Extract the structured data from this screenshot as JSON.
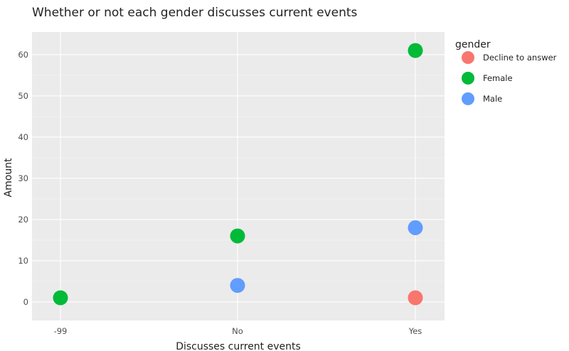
{
  "chart_data": {
    "type": "scatter",
    "title": "Whether or not each gender discusses current events",
    "xlabel": "Discusses current events",
    "ylabel": "Amount",
    "categories": [
      "-99",
      "No",
      "Yes"
    ],
    "ylim": [
      -4.5,
      65.5
    ],
    "yticks": [
      0,
      10,
      20,
      30,
      40,
      50,
      60
    ],
    "grid": true,
    "legend": {
      "title": "gender",
      "position": "right",
      "entries": [
        "Decline to answer",
        "Female",
        "Male"
      ]
    },
    "series": [
      {
        "name": "Decline to answer",
        "color": "#F8766D",
        "points": [
          {
            "x": "Yes",
            "y": 1
          }
        ]
      },
      {
        "name": "Female",
        "color": "#00BA38",
        "points": [
          {
            "x": "-99",
            "y": 1
          },
          {
            "x": "No",
            "y": 16
          },
          {
            "x": "Yes",
            "y": 61
          }
        ]
      },
      {
        "name": "Male",
        "color": "#619CFF",
        "points": [
          {
            "x": "No",
            "y": 4
          },
          {
            "x": "Yes",
            "y": 18
          }
        ]
      }
    ]
  }
}
